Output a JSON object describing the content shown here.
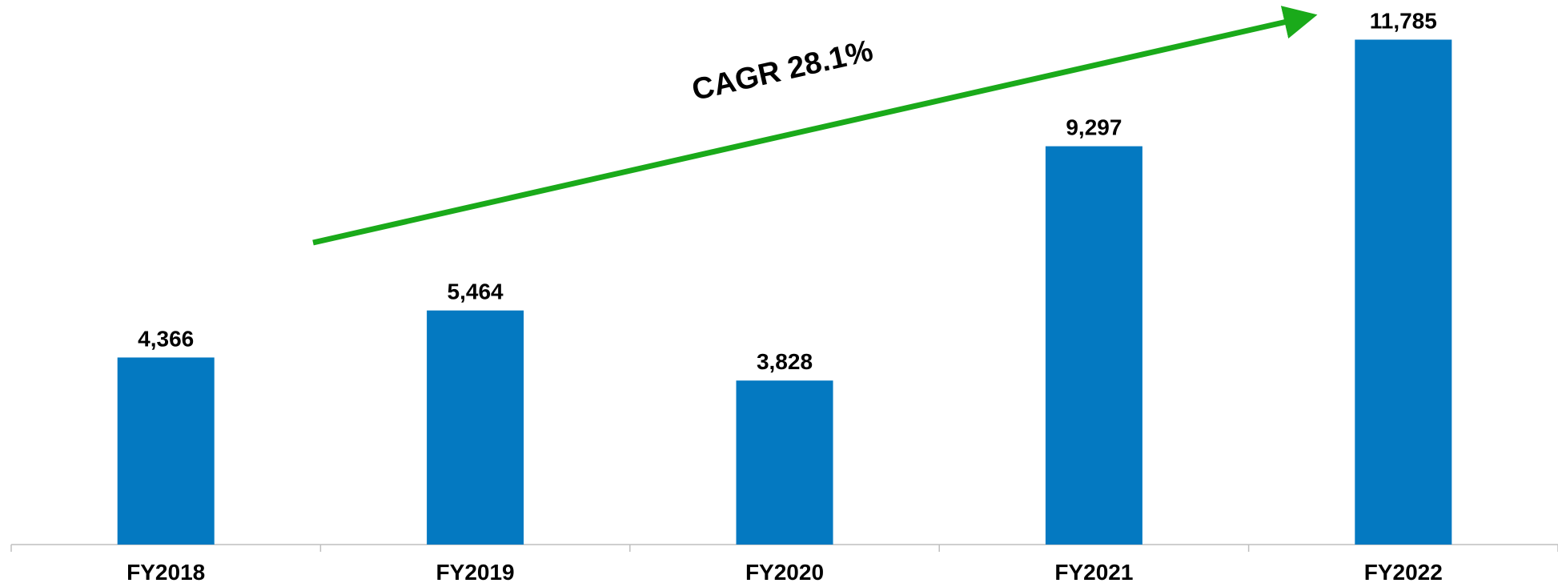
{
  "chart_data": {
    "type": "bar",
    "categories": [
      "FY2018",
      "FY2019",
      "FY2020",
      "FY2021",
      "FY2022"
    ],
    "values": [
      4366,
      5464,
      3828,
      9297,
      11785
    ],
    "value_labels": [
      "4,366",
      "5,464",
      "3,828",
      "9,297",
      "11,785"
    ],
    "color": "#0479c1",
    "ylim": [
      0,
      12000
    ],
    "annotation": "CAGR 28.1%",
    "annotation_color": "#1aaa1a"
  }
}
